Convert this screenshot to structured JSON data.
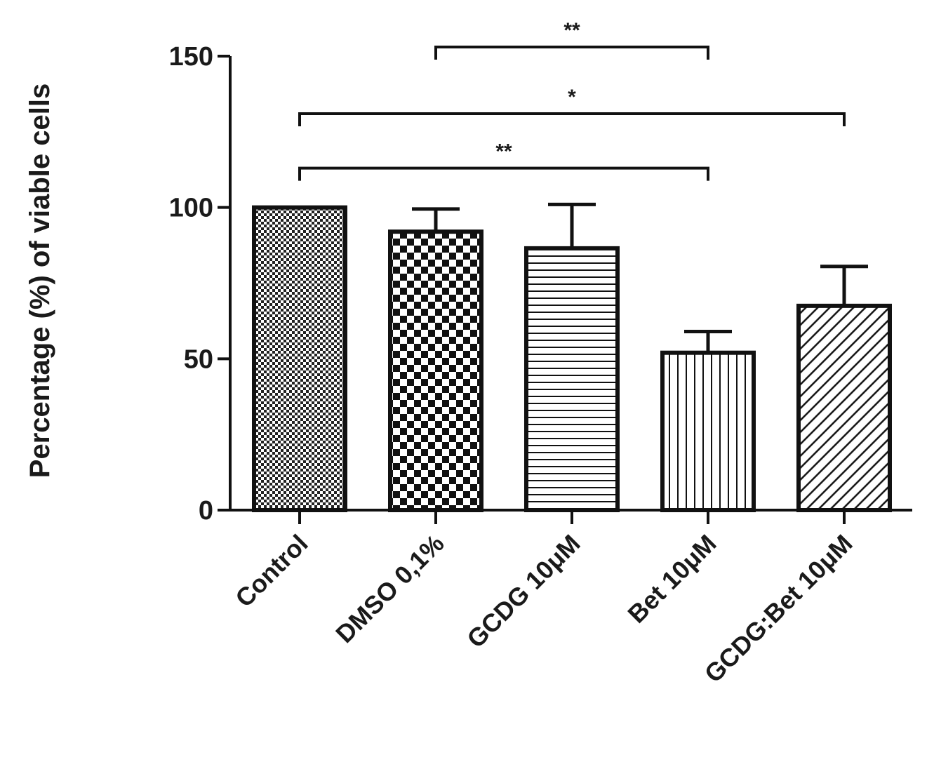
{
  "chart_data": {
    "type": "bar",
    "ylabel": "Percentage (%) of viable cells",
    "xlabel": "",
    "ylim": [
      0,
      150
    ],
    "yticks": [
      0,
      50,
      100,
      150
    ],
    "categories": [
      "Control",
      "DMSO 0,1%",
      "GCDG 10μM",
      "Bet 10μM",
      "GCDG:Bet 10μM"
    ],
    "values": [
      100,
      92,
      86.5,
      52,
      67.5
    ],
    "errors": [
      0,
      7.5,
      14.5,
      7,
      13
    ],
    "patterns": [
      "fine-checker",
      "checker",
      "horizontal-lines",
      "vertical-lines",
      "diagonal-hatch"
    ],
    "significance": [
      {
        "from": 1,
        "to": 3,
        "y": 153,
        "label": "**"
      },
      {
        "from": 0,
        "to": 4,
        "y": 131,
        "label": "*"
      },
      {
        "from": 0,
        "to": 3,
        "y": 113,
        "label": "**"
      }
    ],
    "grid": false,
    "legend": "none"
  }
}
